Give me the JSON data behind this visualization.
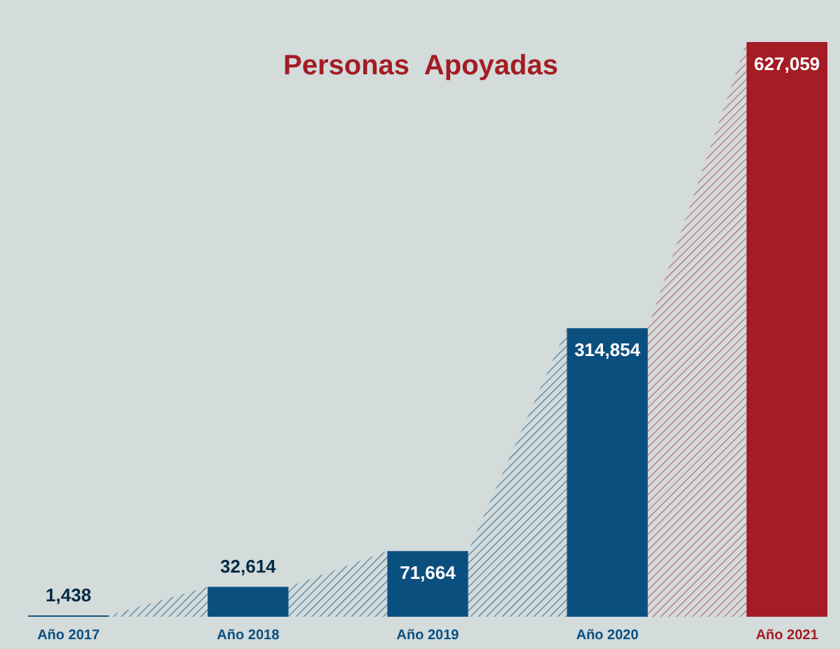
{
  "chart_data": {
    "type": "bar",
    "title": "Personas  Apoyadas",
    "categories": [
      "Año 2017",
      "Año 2018",
      "Año 2019",
      "Año 2020",
      "Año 2021"
    ],
    "values": [
      1438,
      32614,
      71664,
      314854,
      627059
    ],
    "colors": [
      "#0b4f7f",
      "#0b4f7f",
      "#0b4f7f",
      "#0b4f7f",
      "#a41c24"
    ],
    "value_labels": [
      "1,438",
      "32,614",
      "71,664",
      "314,854",
      "627,059"
    ]
  }
}
